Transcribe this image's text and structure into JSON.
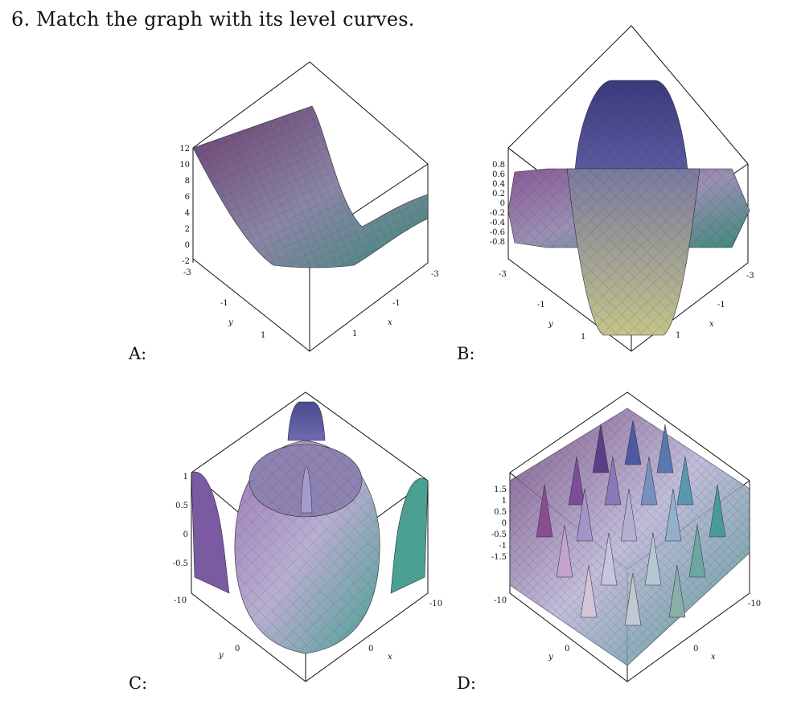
{
  "question": {
    "number": "6.",
    "text": "Match the graph with its level curves."
  },
  "panels": [
    {
      "label": "A:",
      "z_ticks": [
        "12",
        "10",
        "8",
        "6",
        "4",
        "2",
        "0",
        "-2"
      ],
      "x_ticks": [
        "-3",
        "-1",
        "1"
      ],
      "y_ticks": [
        "-3",
        "-1",
        "1"
      ],
      "x_name": "x",
      "y_name": "y",
      "colors": [
        "#6a3d6e",
        "#8a86a6",
        "#3d8a7a"
      ]
    },
    {
      "label": "B:",
      "z_ticks": [
        "0.8",
        "0.6",
        "0.4",
        "0.2",
        "0",
        "-0.2",
        "-0.4",
        "-0.6",
        "-0.8"
      ],
      "x_ticks": [
        "-3",
        "-1",
        "1"
      ],
      "y_ticks": [
        "-3",
        "-1",
        "1"
      ],
      "x_name": "x",
      "y_name": "y",
      "colors": [
        "#46457f",
        "#9a90b4",
        "#3d8a7a"
      ]
    },
    {
      "label": "C:",
      "z_ticks": [
        "1",
        "0.5",
        "0",
        "-0.5"
      ],
      "x_ticks": [
        "-10",
        "0"
      ],
      "y_ticks": [
        "-10",
        "0"
      ],
      "x_name": "x",
      "y_name": "y",
      "colors": [
        "#5a4c88",
        "#b8aed0",
        "#4aa092"
      ]
    },
    {
      "label": "D:",
      "z_ticks": [
        "1.5",
        "1",
        "0.5",
        "0",
        "-0.5",
        "-1",
        "-1.5"
      ],
      "x_ticks": [
        "-10",
        "0"
      ],
      "y_ticks": [
        "-10",
        "0"
      ],
      "x_name": "x",
      "y_name": "y",
      "colors": [
        "#6b3e78",
        "#b8b2d4",
        "#3a8a86"
      ]
    }
  ]
}
